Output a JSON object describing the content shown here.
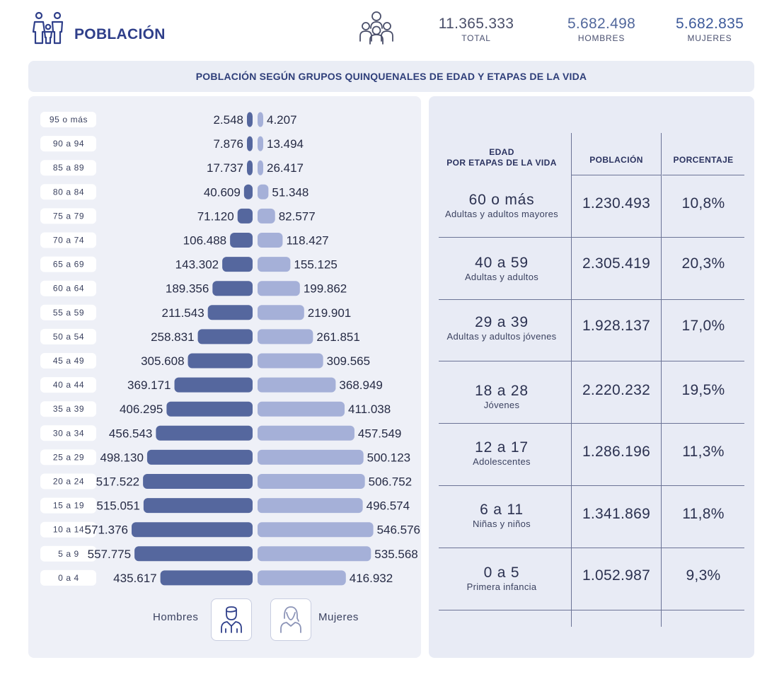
{
  "header": {
    "title": "POBLACIÓN",
    "total_value": "11.365.333",
    "total_label": "TOTAL",
    "men_value": "5.682.498",
    "men_label": "HOMBRES",
    "women_value": "5.682.835",
    "women_label": "MUJERES"
  },
  "banner": {
    "title": "POBLACIÓN SEGÚN GRUPOS QUINQUENALES DE EDAD Y ETAPAS DE LA VIDA"
  },
  "chart_data": {
    "type": "bar",
    "orientation": "horizontal-population-pyramid",
    "categories": [
      "95 o más",
      "90 a 94",
      "85 a 89",
      "80 a 84",
      "75 a 79",
      "70 a 74",
      "65 a 69",
      "60 a 64",
      "55 a 59",
      "50 a 54",
      "45 a  49",
      "40 a 44",
      "35 a 39",
      "30 a 34",
      "25 a 29",
      "20 a 24",
      "15 a 19",
      "10 a 14",
      "5 a 9",
      "0 a 4"
    ],
    "series": [
      {
        "name": "Hombres",
        "values": [
          2548,
          7876,
          17737,
          40609,
          71120,
          106488,
          143302,
          189356,
          211543,
          258831,
          305608,
          369171,
          406295,
          456543,
          498130,
          517522,
          515051,
          571376,
          557775,
          435617
        ],
        "labels": [
          "2.548",
          "7.876",
          "17.737",
          "40.609",
          "71.120",
          "106.488",
          "143.302",
          "189.356",
          "211.543",
          "258.831",
          "305.608",
          "369.171",
          "406.295",
          "456.543",
          "498.130",
          "517.522",
          "515.051",
          "571.376",
          "557.775",
          "435.617"
        ]
      },
      {
        "name": "Mujeres",
        "values": [
          4207,
          13494,
          26417,
          51348,
          82577,
          118427,
          155125,
          199862,
          219901,
          261851,
          309565,
          368949,
          411038,
          457549,
          500123,
          506752,
          496574,
          546576,
          535568,
          416932
        ],
        "labels": [
          "4.207",
          "13.494",
          "26.417",
          "51.348",
          "82.577",
          "118.427",
          "155.125",
          "199.862",
          "219.901",
          "261.851",
          "309.565",
          "368.949",
          "411.038",
          "457.549",
          "500.123",
          "506.752",
          "496.574",
          "546.576",
          "535.568",
          "416.932"
        ]
      }
    ],
    "legend": {
      "men_label": "Hombres",
      "women_label": "Mujeres",
      "placement": "bottom"
    },
    "colors": {
      "men": "#55679e",
      "women": "#a5b0d8"
    }
  },
  "table": {
    "headers": {
      "age_line1": "EDAD",
      "age_line2": "POR ETAPAS DE LA VIDA",
      "population": "POBLACIÓN",
      "percentage": "PORCENTAJE"
    },
    "rows": [
      {
        "age": "60 o más",
        "stage": "Adultas y adultos mayores",
        "population": "1.230.493",
        "percentage": "10,8%"
      },
      {
        "age": "40 a 59",
        "stage": "Adultas y adultos",
        "population": "2.305.419",
        "percentage": "20,3%"
      },
      {
        "age": "29 a 39",
        "stage": "Adultas y adultos jóvenes",
        "population": "1.928.137",
        "percentage": "17,0%"
      },
      {
        "age": "18 a 28",
        "stage": "Jóvenes",
        "population": "2.220.232",
        "percentage": "19,5%"
      },
      {
        "age": "12 a 17",
        "stage": "Adolescentes",
        "population": "1.286.196",
        "percentage": "11,3%"
      },
      {
        "age": "6 a 11",
        "stage": "Niñas y niños",
        "population": "1.341.869",
        "percentage": "11,8%"
      },
      {
        "age": "0 a 5",
        "stage": "Primera infancia",
        "population": "1.052.987",
        "percentage": "9,3%"
      }
    ]
  },
  "icons": {
    "header": "family-icon",
    "crowd": "crowd-icon",
    "men": "man-icon",
    "women": "woman-icon"
  }
}
